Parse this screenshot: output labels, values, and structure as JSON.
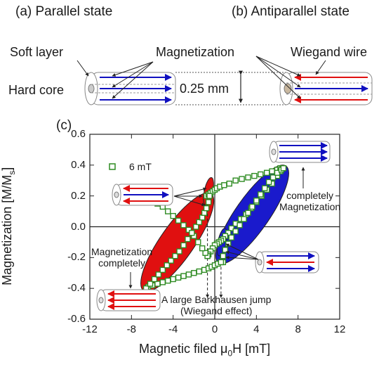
{
  "panels": {
    "a": "(a) Parallel state",
    "b": "(b) Antiparallel state",
    "c": "(c)"
  },
  "labels": {
    "soft_layer": "Soft layer",
    "hard_core": "Hard core",
    "magnetization": "Magnetization",
    "wiegand_wire": "Wiegand wire",
    "diameter": "0.25 mm"
  },
  "colors": {
    "parallel": "#1010c0",
    "antiparallel": "#e01010",
    "curve": "#2e8b22",
    "ellipse_red": "#e01010",
    "ellipse_blue": "#1a1acc",
    "axis": "#222222"
  },
  "chart_data": {
    "type": "scatter",
    "xlabel": "Magnetic filed μ0H [mT]",
    "ylabel": "Magnetization [M/Ms]",
    "xlim": [
      -12,
      12
    ],
    "ylim": [
      -0.6,
      0.6
    ],
    "xticks": [
      -12,
      -8,
      -4,
      0,
      4,
      8,
      12
    ],
    "yticks": [
      -0.6,
      -0.4,
      -0.2,
      0.0,
      0.2,
      0.4,
      0.6
    ],
    "xtick_labels": [
      "-12",
      "-8",
      "-4",
      "0",
      "4",
      "8",
      "12"
    ],
    "ytick_labels": [
      "-0.6",
      "-0.4",
      "-0.2",
      "0.0",
      "0.2",
      "0.4",
      "0.6"
    ],
    "grid": false,
    "legend_position": "top-left",
    "series": [
      {
        "name": "6 mT",
        "marker": "open-square",
        "branches": [
          {
            "x": [
              -0.8,
              -0.6,
              -0.4,
              -0.2,
              0.0,
              0.2,
              0.5,
              0.9,
              1.4,
              2.0,
              2.6,
              3.2,
              3.8,
              4.4,
              5.0,
              5.5,
              6.0,
              6.3,
              6.5
            ],
            "y": [
              0.2,
              0.21,
              0.22,
              0.23,
              0.24,
              0.25,
              0.26,
              0.27,
              0.28,
              0.3,
              0.31,
              0.32,
              0.33,
              0.34,
              0.35,
              0.36,
              0.37,
              0.38,
              0.38
            ]
          },
          {
            "x": [
              6.5,
              6.3,
              6.0,
              5.5,
              5.0,
              4.5,
              4.0,
              3.5,
              3.0,
              2.5,
              2.0,
              1.6,
              1.3,
              1.0,
              0.8,
              0.6,
              0.4,
              0.2,
              0.0,
              -0.2,
              -0.4,
              -0.6,
              -0.7
            ],
            "y": [
              0.38,
              0.36,
              0.33,
              0.28,
              0.24,
              0.2,
              0.16,
              0.12,
              0.08,
              0.05,
              0.02,
              -0.01,
              -0.04,
              -0.06,
              -0.08,
              -0.09,
              -0.1,
              -0.11,
              -0.12,
              -0.14,
              -0.16,
              -0.18,
              -0.19
            ]
          },
          {
            "x": [
              -0.7,
              -0.9,
              -1.2,
              -1.6,
              -2.0,
              -2.5,
              -3.0,
              -3.5,
              -4.0,
              -4.5,
              -5.0,
              -5.5,
              -6.0,
              -6.4,
              -6.6
            ],
            "y": [
              -0.19,
              -0.17,
              -0.14,
              -0.1,
              -0.06,
              -0.02,
              0.01,
              0.04,
              0.07,
              0.1,
              0.13,
              0.15,
              0.17,
              0.18,
              0.19
            ]
          },
          {
            "x": [
              -6.6,
              -6.4,
              -6.0,
              -5.5,
              -5.0,
              -4.5,
              -4.0,
              -3.5,
              -3.0,
              -2.5,
              -2.0,
              -1.5,
              -1.0,
              -0.6,
              -0.3,
              0.0,
              0.3,
              0.6,
              0.8
            ],
            "y": [
              -0.4,
              -0.39,
              -0.38,
              -0.37,
              -0.36,
              -0.35,
              -0.34,
              -0.33,
              -0.32,
              -0.31,
              -0.3,
              -0.29,
              -0.28,
              -0.27,
              -0.26,
              -0.25,
              -0.24,
              -0.23,
              -0.23
            ]
          },
          {
            "x": [
              -6.6,
              -6.2,
              -5.8,
              -5.4,
              -5.0,
              -4.6,
              -4.2,
              -3.8,
              -3.4,
              -3.0,
              -2.6,
              -2.2,
              -1.8,
              -1.5,
              -1.2,
              -1.0,
              -0.8,
              -0.6,
              -0.5
            ],
            "y": [
              -0.4,
              -0.37,
              -0.34,
              -0.31,
              -0.28,
              -0.25,
              -0.22,
              -0.19,
              -0.16,
              -0.12,
              -0.08,
              -0.04,
              0.0,
              0.03,
              0.06,
              0.09,
              0.12,
              0.16,
              0.2
            ]
          },
          {
            "x": [
              0.6,
              0.8,
              1.0,
              1.3,
              1.6,
              2.0,
              2.4,
              2.8,
              3.2,
              3.6,
              4.0,
              4.4,
              4.8,
              5.2,
              5.6,
              6.0,
              6.4,
              6.6
            ],
            "y": [
              -0.23,
              -0.19,
              -0.15,
              -0.11,
              -0.07,
              -0.03,
              0.01,
              0.05,
              0.09,
              0.13,
              0.17,
              0.21,
              0.25,
              0.29,
              0.32,
              0.35,
              0.37,
              0.38
            ]
          }
        ]
      }
    ],
    "annotations": [
      {
        "id": "completely-mag",
        "lines": [
          "completely",
          "Magnetization"
        ]
      },
      {
        "id": "mag-completely",
        "lines": [
          "Magnetization",
          "completely"
        ]
      },
      {
        "id": "barkhausen",
        "lines": [
          "A large Barkhausen jump",
          "(Wiegand effect)"
        ]
      }
    ]
  }
}
